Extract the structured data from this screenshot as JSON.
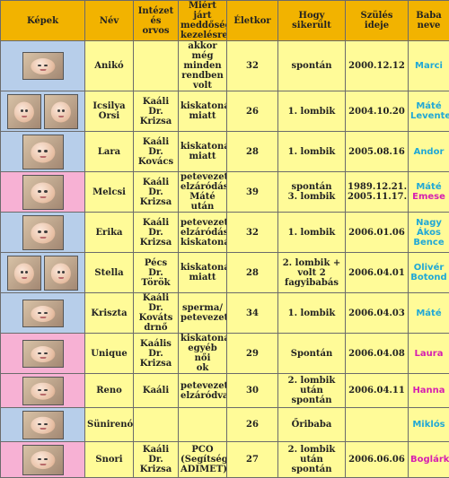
{
  "headers": [
    "Képek",
    "Név",
    "Intézet\nés orvos",
    "Miért járt\nmeddőségi\nkezelésre",
    "Életkor",
    "Hogy\nsikerült",
    "Szülés ideje",
    "Baba\nneve"
  ],
  "rows": [
    {
      "name": "Anikó",
      "clinic": "",
      "reason": "akkor még\nminden\nrendben volt",
      "age": "32",
      "how": "spontán",
      "birth": "2000.12.12",
      "baby": "Marci",
      "baby_color": "blue",
      "pic_bg": "blue",
      "photo_count": 1,
      "photo_alt": [
        "baby-photo"
      ]
    },
    {
      "name": "Icsilya Orsi",
      "clinic": "Kaáli Dr.\nKrizsa",
      "reason": "kiskatonák\nmiatt",
      "age": "26",
      "how": "1. lombik",
      "birth": "2004.10.20",
      "baby": "Máté\nLevente",
      "baby_color": "blue",
      "pic_bg": "blue",
      "photo_count": 2,
      "photo_alt": [
        "baby-photo",
        "baby-photo"
      ]
    },
    {
      "name": "Lara",
      "clinic": "Kaáli Dr.\nKovács",
      "reason": "kiskatonák\nmiatt",
      "age": "28",
      "how": "1. lombik",
      "birth": "2005.08.16",
      "baby": "Andor",
      "baby_color": "blue",
      "pic_bg": "blue",
      "photo_count": 1,
      "photo_alt": [
        "baby-photo"
      ]
    },
    {
      "name": "Melcsi",
      "clinic": "Kaáli Dr.\nKrizsa",
      "reason": "petevezető\nelzáródás\nMáté után",
      "age": "39",
      "how": "spontán\n3. lombik",
      "birth": "1989.12.21.\n2005.11.17.",
      "baby": "Máté\nEmese",
      "baby_color": "mixed",
      "pic_bg": "pink",
      "photo_count": 1,
      "photo_alt": [
        "baby-photo"
      ]
    },
    {
      "name": "Erika",
      "clinic": "Kaáli Dr.\nKrizsa",
      "reason": "petevezető\nelzáródás/\nkiskatonák",
      "age": "32",
      "how": "1. lombik",
      "birth": "2006.01.06",
      "baby": "Nagy\nÁkos\nBence",
      "baby_color": "blue",
      "pic_bg": "blue",
      "photo_count": 1,
      "photo_alt": [
        "baby-photo"
      ]
    },
    {
      "name": "Stella",
      "clinic": "Pécs Dr.\nTörök",
      "reason": "kiskatonák\nmiatt",
      "age": "28",
      "how": "2. lombik +\nvolt 2\nfagyibabás",
      "birth": "2006.04.01",
      "baby": "Olivér\nBotond",
      "baby_color": "blue",
      "pic_bg": "blue",
      "photo_count": 2,
      "photo_alt": [
        "baby-photo",
        "baby-photo"
      ]
    },
    {
      "name": "Kriszta",
      "clinic": "Kaáli Dr.\nKováts\ndrnő",
      "reason": "sperma/\npetevezető",
      "age": "34",
      "how": "1. lombik",
      "birth": "2006.04.03",
      "baby": "Máté",
      "baby_color": "blue",
      "pic_bg": "blue",
      "photo_count": 1,
      "photo_alt": [
        "baby-photo"
      ]
    },
    {
      "name": "Unique",
      "clinic": "Kaális Dr.\nKrizsa",
      "reason": "kiskatonák\negyéb női\nok",
      "age": "29",
      "how": "Spontán",
      "birth": "2006.04.08",
      "baby": "Laura",
      "baby_color": "pink",
      "pic_bg": "pink",
      "photo_count": 1,
      "photo_alt": [
        "baby-photo"
      ]
    },
    {
      "name": "Reno",
      "clinic": "Kaáli",
      "reason": "petevezetők\nelzáródva",
      "age": "30",
      "how": "2. lombik után\nspontán",
      "birth": "2006.04.11",
      "baby": "Hanna",
      "baby_color": "pink",
      "pic_bg": "pink",
      "photo_count": 1,
      "photo_alt": [
        "baby-photo"
      ]
    },
    {
      "name": "Sünirenóca",
      "clinic": "",
      "reason": "",
      "age": "26",
      "how": "Őribaba",
      "birth": "",
      "baby": "Miklós",
      "baby_color": "blue",
      "pic_bg": "blue",
      "photo_count": 1,
      "photo_alt": [
        "baby-photo"
      ]
    },
    {
      "name": "Snori",
      "clinic": "Kaáli Dr.\nKrizsa",
      "reason": "PCO\n(Segítség\nADIMET)",
      "age": "27",
      "how": "2. lombik után\nspontán",
      "birth": "2006.06.06",
      "baby": "Boglárka",
      "baby_color": "pink",
      "pic_bg": "pink",
      "photo_count": 1,
      "photo_alt": [
        "baby-photo"
      ]
    }
  ],
  "colors": {
    "header_bg": "#f2b300",
    "cell_bg": "#fffb98",
    "boy_bg": "#b7ceea",
    "girl_bg": "#f7b1d4",
    "boy_text": "#21a8d6",
    "girl_text": "#d61fb0"
  }
}
